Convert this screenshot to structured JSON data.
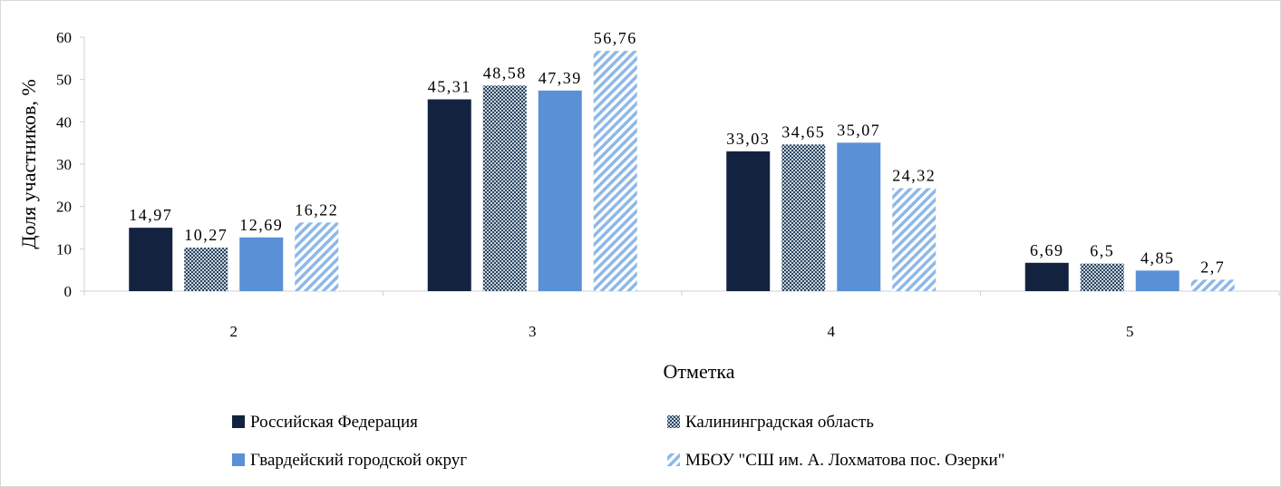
{
  "chart_data": {
    "type": "bar",
    "categories": [
      "2",
      "3",
      "4",
      "5"
    ],
    "series": [
      {
        "name": "Российская Федерация",
        "values": [
          14.97,
          45.31,
          33.03,
          6.69
        ],
        "labels": [
          "14,97",
          "45,31",
          "33,03",
          "6,69"
        ],
        "color": "#13233f",
        "pattern": "solid"
      },
      {
        "name": "Калининградская область",
        "values": [
          10.27,
          48.58,
          34.65,
          6.5
        ],
        "labels": [
          "10,27",
          "48,58",
          "34,65",
          "6,5"
        ],
        "color": "#2b4560",
        "pattern": "dots"
      },
      {
        "name": "Гвардейский городской округ",
        "values": [
          12.69,
          47.39,
          35.07,
          4.85
        ],
        "labels": [
          "12,69",
          "47,39",
          "35,07",
          "4,85"
        ],
        "color": "#5a90d6",
        "pattern": "solid"
      },
      {
        "name": "МБОУ \"СШ им. А. Лохматова пос. Озерки\"",
        "values": [
          16.22,
          56.76,
          24.32,
          2.7
        ],
        "labels": [
          "16,22",
          "56,76",
          "24,32",
          "2,7"
        ],
        "color": "#8db8e8",
        "pattern": "diagonal"
      }
    ],
    "xlabel": "Отметка",
    "ylabel": "Доля участников, %",
    "ylim": [
      0,
      60
    ],
    "yticks": [
      "0",
      "10",
      "20",
      "30",
      "40",
      "50",
      "60"
    ],
    "grid": false,
    "legend": "bottom"
  }
}
